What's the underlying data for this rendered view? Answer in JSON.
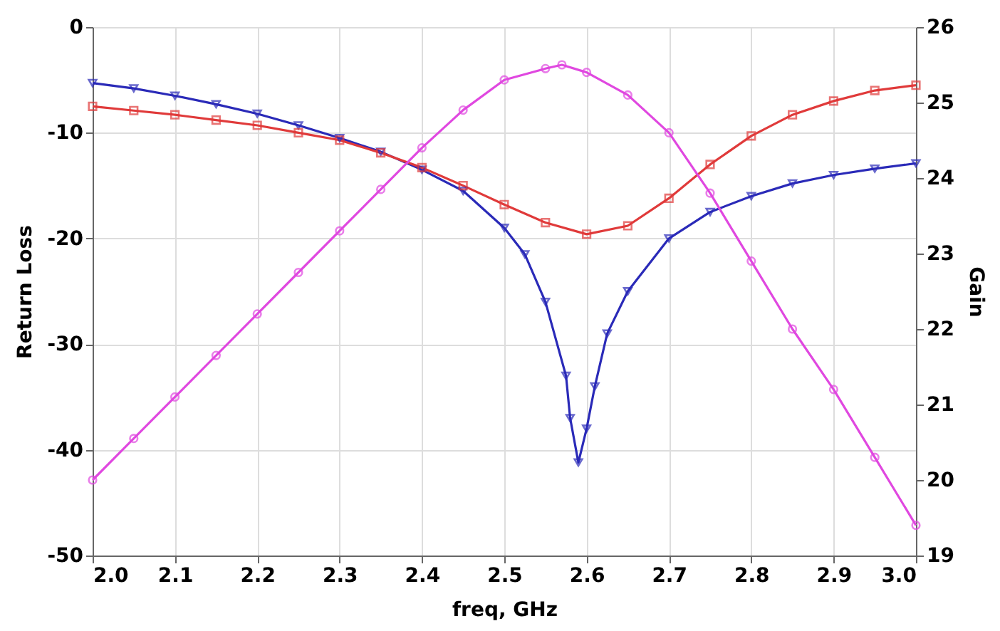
{
  "chart_data": {
    "type": "line",
    "xlabel": "freq, GHz",
    "ylabel": "Return Loss",
    "y2label": "Gain",
    "xlim": [
      2.0,
      3.0
    ],
    "xticks": [
      {
        "value": 2,
        "label": "2.0"
      },
      {
        "value": 2.1,
        "label": "2.1"
      },
      {
        "value": 2.2,
        "label": "2.2"
      },
      {
        "value": 2.3,
        "label": "2.3"
      },
      {
        "value": 2.4,
        "label": "2.4"
      },
      {
        "value": 2.5,
        "label": "2.5"
      },
      {
        "value": 2.6,
        "label": "2.6"
      },
      {
        "value": 2.7,
        "label": "2.7"
      },
      {
        "value": 2.8,
        "label": "2.8"
      },
      {
        "value": 2.9,
        "label": "2.9"
      },
      {
        "value": 3,
        "label": "3.0"
      }
    ],
    "ylim": [
      -50,
      0
    ],
    "yticks": [
      -50,
      -40,
      -30,
      -20,
      -10,
      0
    ],
    "y2lim": [
      19,
      26
    ],
    "y2ticks": [
      19,
      20,
      21,
      22,
      23,
      24,
      25,
      26
    ],
    "grid": true,
    "legend": false,
    "line_style": "solid",
    "series": [
      {
        "color": "#2a2ab8",
        "marker": "triangle",
        "x": [
          2.0,
          2.05,
          2.1,
          2.15,
          2.2,
          2.25,
          2.3,
          2.35,
          2.4,
          2.45,
          2.5,
          2.525,
          2.55,
          2.575,
          2.58,
          2.59,
          2.6,
          2.61,
          2.625,
          2.65,
          2.7,
          2.75,
          2.8,
          2.85,
          2.9,
          2.95,
          3.0
        ],
        "values": [
          -5.3,
          -5.8,
          -6.5,
          -7.3,
          -8.2,
          -9.3,
          -10.5,
          -11.8,
          -13.5,
          -15.5,
          -19,
          -21.5,
          -26,
          -33,
          -37,
          -41.2,
          -38,
          -34,
          -29,
          -25,
          -20,
          -17.5,
          -16,
          -14.8,
          -14,
          -13.4,
          -12.9
        ]
      },
      {
        "color": "#e03a3a",
        "marker": "square",
        "x": [
          2.0,
          2.05,
          2.1,
          2.15,
          2.2,
          2.25,
          2.3,
          2.35,
          2.4,
          2.45,
          2.5,
          2.55,
          2.6,
          2.65,
          2.7,
          2.75,
          2.8,
          2.85,
          2.9,
          2.95,
          3.0
        ],
        "values": [
          -7.5,
          -7.9,
          -8.3,
          -8.8,
          -9.3,
          -10,
          -10.7,
          -11.9,
          -13.3,
          -15,
          -16.8,
          -18.5,
          -19.6,
          -18.8,
          -16.2,
          -13,
          -10.3,
          -8.3,
          -7,
          -6,
          -5.5
        ]
      },
      {
        "color": "#e048e0",
        "marker": "circle",
        "axis": "y2",
        "x": [
          2.0,
          2.05,
          2.1,
          2.15,
          2.2,
          2.25,
          2.3,
          2.35,
          2.4,
          2.45,
          2.5,
          2.55,
          2.57,
          2.6,
          2.65,
          2.7,
          2.75,
          2.8,
          2.85,
          2.9,
          2.95,
          3.0
        ],
        "values": [
          20.0,
          20.55,
          21.1,
          21.65,
          22.2,
          22.75,
          23.3,
          23.85,
          24.4,
          24.9,
          25.3,
          25.45,
          25.5,
          25.4,
          25.1,
          24.6,
          23.8,
          22.9,
          22.0,
          21.2,
          20.3,
          19.4
        ]
      }
    ]
  }
}
